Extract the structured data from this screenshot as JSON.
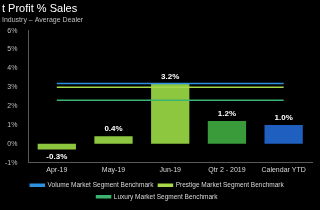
{
  "chart_data": {
    "type": "bar",
    "title": "t Profit % Sales",
    "subtitle": "Industry – Average Dealer",
    "categories": [
      "Apr-19",
      "May-19",
      "Jun-19",
      "Qtr 2 - 2019",
      "Calendar YTD"
    ],
    "values": [
      -0.3,
      0.4,
      3.2,
      1.2,
      1.0
    ],
    "value_labels": [
      "-0.3%",
      "0.4%",
      "3.2%",
      "1.2%",
      "1.0%"
    ],
    "colors": [
      "#8dc63f",
      "#8dc63f",
      "#8dc63f",
      "#3a9b3a",
      "#1f5fbf"
    ],
    "data_labels": true,
    "series": [
      {
        "name": "Volume Market Segment Benchmark",
        "type": "line",
        "color": "#2e90e0",
        "values": [
          3.2,
          3.2,
          3.2,
          3.2,
          3.2
        ]
      },
      {
        "name": "Prestige Market Segment Benchmark",
        "type": "line",
        "color": "#a6d84a",
        "values": [
          3.0,
          3.0,
          3.0,
          3.0,
          3.0
        ]
      },
      {
        "name": "Luxury Market Segment Benchmark",
        "type": "line",
        "color": "#3cb371",
        "values": [
          2.3,
          2.3,
          2.3,
          2.3,
          2.3
        ]
      }
    ],
    "ylim": [
      -1,
      6
    ],
    "yticks": [
      {
        "value": -1,
        "label": "-1%"
      },
      {
        "value": 0,
        "label": "0%"
      },
      {
        "value": 1,
        "label": "1%"
      },
      {
        "value": 2,
        "label": "2%"
      },
      {
        "value": 3,
        "label": "3%"
      },
      {
        "value": 4,
        "label": "4%"
      },
      {
        "value": 5,
        "label": "5%"
      },
      {
        "value": 6,
        "label": "6%"
      }
    ],
    "grid": false,
    "legend": "bottom"
  }
}
